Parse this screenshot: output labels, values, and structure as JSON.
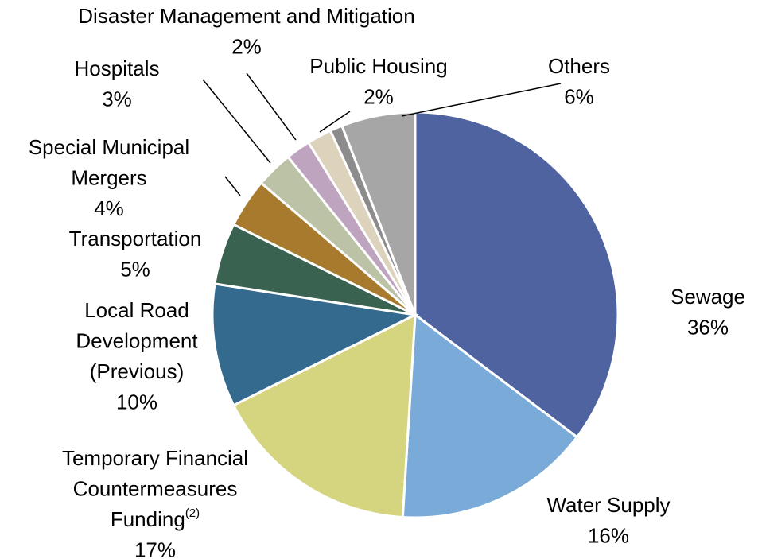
{
  "chart_data": {
    "type": "pie",
    "categories": [
      "Sewage",
      "Water Supply",
      "Temporary Financial\nCountermeasures\nFunding(2)",
      "Local Road\nDevelopment\n(Previous)",
      "Transportation",
      "Special Municipal\nMergers",
      "Hospitals",
      "Disaster Management and Mitigation",
      "Public Housing",
      null,
      "Others"
    ],
    "values": [
      36,
      16,
      17,
      10,
      5,
      4,
      3,
      2,
      2,
      1,
      6
    ],
    "value_labels": [
      "36%",
      "16%",
      "17%",
      "10%",
      "5%",
      "4%",
      "3%",
      "2%",
      "2%",
      null,
      "6%"
    ],
    "colors": [
      "#4e63a0",
      "#7aaad8",
      "#d5d47f",
      "#336a8e",
      "#3a6250",
      "#a87a2e",
      "#bcc2a6",
      "#bfa4c0",
      "#ddd3bd",
      "#8c8c8c",
      "#a6a6a6"
    ]
  }
}
